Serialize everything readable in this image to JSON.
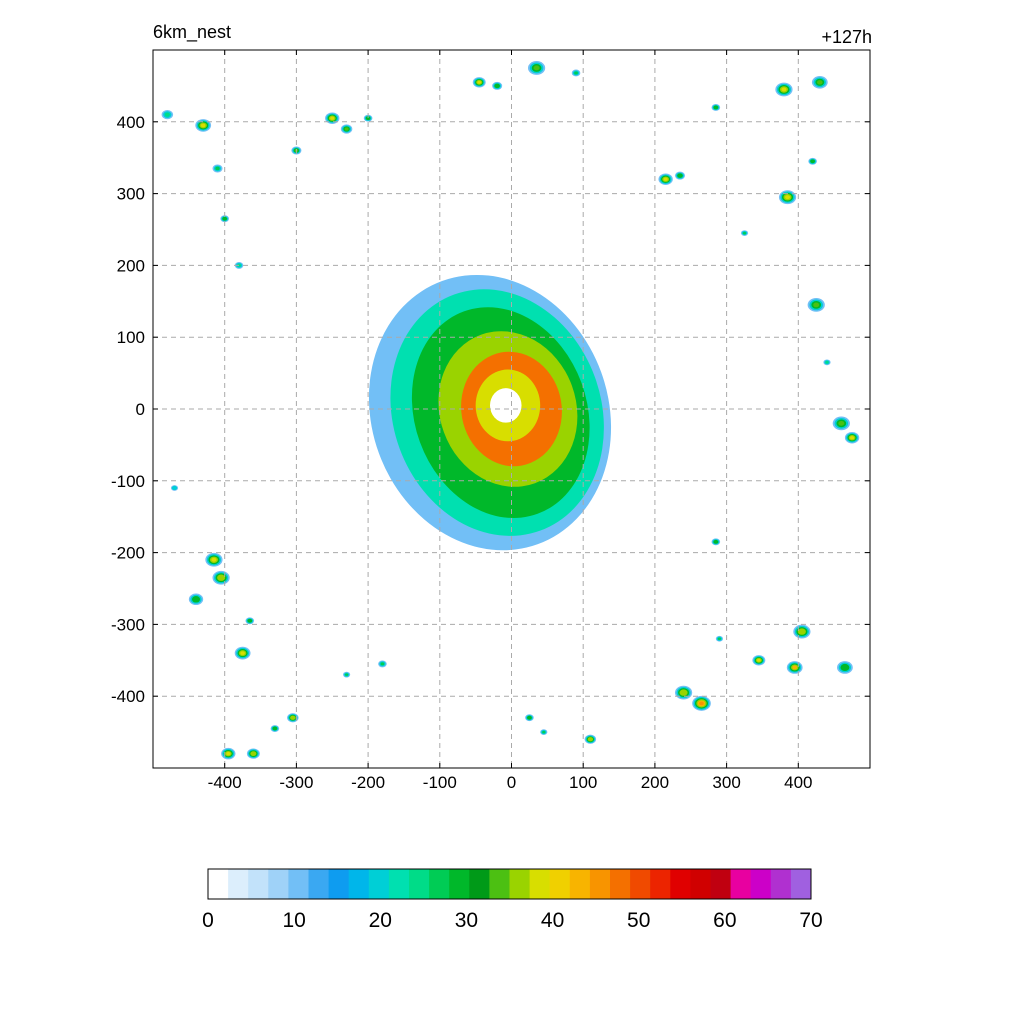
{
  "chart_data": {
    "type": "heatmap",
    "title_left": "6km_nest",
    "title_right": "+127h",
    "xlabel": "",
    "ylabel": "",
    "xlim": [
      -500,
      500
    ],
    "ylim": [
      -500,
      500
    ],
    "x_ticks": [
      -400,
      -300,
      -200,
      -100,
      0,
      100,
      200,
      300,
      400
    ],
    "y_ticks": [
      -400,
      -300,
      -200,
      -100,
      0,
      100,
      200,
      300,
      400
    ],
    "x_tick_labels": [
      "-400",
      "-300",
      "-200",
      "-100",
      "0",
      "100",
      "200",
      "300",
      "400"
    ],
    "y_tick_labels": [
      "-400",
      "-300",
      "-200",
      "-100",
      "0",
      "100",
      "200",
      "300",
      "400"
    ],
    "grid": true,
    "colorbar": {
      "min": 0,
      "max": 70,
      "step": 2.5,
      "tick_values": [
        0,
        10,
        20,
        30,
        40,
        50,
        60,
        70
      ],
      "tick_labels": [
        "0",
        "10",
        "20",
        "30",
        "40",
        "50",
        "60",
        "70"
      ],
      "colors": [
        "#ffffff",
        "#dceefc",
        "#c2e2fa",
        "#9fd2f8",
        "#72bff6",
        "#3aa8f2",
        "#0e9cf0",
        "#00b6ea",
        "#00cfd6",
        "#00e0b0",
        "#00dc88",
        "#00cc55",
        "#00b82a",
        "#009a18",
        "#4cc012",
        "#9ad300",
        "#d8de00",
        "#f0d000",
        "#f8b400",
        "#f89400",
        "#f47000",
        "#f04a00",
        "#ec2400",
        "#e00000",
        "#d00000",
        "#c00010",
        "#e800a0",
        "#cc00c8",
        "#b030d0",
        "#a060e0"
      ]
    },
    "storm": {
      "center": [
        -10,
        0
      ],
      "eye_radius": 22,
      "features": [
        {
          "type": "outer_band",
          "cx": -30,
          "cy": -5,
          "rx": 165,
          "ry": 195,
          "rotation_deg": -20,
          "value": 12
        },
        {
          "type": "rain_shield",
          "cx": -20,
          "cy": -5,
          "rx": 145,
          "ry": 175,
          "rotation_deg": -20,
          "value": 24
        },
        {
          "type": "rain_shield",
          "cx": -15,
          "cy": -5,
          "rx": 120,
          "ry": 150,
          "rotation_deg": -20,
          "value": 32
        },
        {
          "type": "eyewall_band",
          "cx": -5,
          "cy": 0,
          "rx": 95,
          "ry": 110,
          "rotation_deg": -20,
          "value": 38
        },
        {
          "type": "eyewall_band",
          "cx": 0,
          "cy": 0,
          "rx": 70,
          "ry": 80,
          "rotation_deg": -10,
          "value": 50
        },
        {
          "type": "eyewall_band",
          "cx": -5,
          "cy": 5,
          "rx": 45,
          "ry": 50,
          "rotation_deg": 0,
          "value": 40
        },
        {
          "type": "eye",
          "cx": -8,
          "cy": 5,
          "rx": 22,
          "ry": 24,
          "rotation_deg": 0,
          "value": 0
        }
      ]
    },
    "cells": [
      {
        "x": -480,
        "y": 410,
        "r": 8,
        "peak": 25
      },
      {
        "x": -430,
        "y": 395,
        "r": 11,
        "peak": 40
      },
      {
        "x": -410,
        "y": 335,
        "r": 7,
        "peak": 28
      },
      {
        "x": -400,
        "y": 265,
        "r": 6,
        "peak": 30
      },
      {
        "x": -380,
        "y": 200,
        "r": 6,
        "peak": 25
      },
      {
        "x": -300,
        "y": 360,
        "r": 7,
        "peak": 35
      },
      {
        "x": -250,
        "y": 405,
        "r": 10,
        "peak": 40
      },
      {
        "x": -230,
        "y": 390,
        "r": 8,
        "peak": 35
      },
      {
        "x": -200,
        "y": 405,
        "r": 6,
        "peak": 30
      },
      {
        "x": -45,
        "y": 455,
        "r": 9,
        "peak": 40
      },
      {
        "x": -20,
        "y": 450,
        "r": 7,
        "peak": 32
      },
      {
        "x": 35,
        "y": 475,
        "r": 12,
        "peak": 35
      },
      {
        "x": 90,
        "y": 468,
        "r": 6,
        "peak": 28
      },
      {
        "x": 215,
        "y": 320,
        "r": 10,
        "peak": 40
      },
      {
        "x": 235,
        "y": 325,
        "r": 7,
        "peak": 32
      },
      {
        "x": 285,
        "y": 420,
        "r": 6,
        "peak": 30
      },
      {
        "x": 325,
        "y": 245,
        "r": 5,
        "peak": 28
      },
      {
        "x": 380,
        "y": 445,
        "r": 12,
        "peak": 42
      },
      {
        "x": 430,
        "y": 455,
        "r": 11,
        "peak": 35
      },
      {
        "x": 385,
        "y": 295,
        "r": 12,
        "peak": 42
      },
      {
        "x": 420,
        "y": 345,
        "r": 6,
        "peak": 30
      },
      {
        "x": 425,
        "y": 145,
        "r": 12,
        "peak": 35
      },
      {
        "x": 440,
        "y": 65,
        "r": 5,
        "peak": 25
      },
      {
        "x": 460,
        "y": -20,
        "r": 12,
        "peak": 35
      },
      {
        "x": 475,
        "y": -40,
        "r": 10,
        "peak": 40
      },
      {
        "x": -470,
        "y": -110,
        "r": 5,
        "peak": 22
      },
      {
        "x": -415,
        "y": -210,
        "r": 12,
        "peak": 42
      },
      {
        "x": -405,
        "y": -235,
        "r": 12,
        "peak": 38
      },
      {
        "x": -440,
        "y": -265,
        "r": 10,
        "peak": 30
      },
      {
        "x": -365,
        "y": -295,
        "r": 6,
        "peak": 32
      },
      {
        "x": -375,
        "y": -340,
        "r": 11,
        "peak": 42
      },
      {
        "x": -180,
        "y": -355,
        "r": 6,
        "peak": 28
      },
      {
        "x": -230,
        "y": -370,
        "r": 5,
        "peak": 28
      },
      {
        "x": -305,
        "y": -430,
        "r": 8,
        "peak": 38
      },
      {
        "x": -330,
        "y": -445,
        "r": 6,
        "peak": 30
      },
      {
        "x": -395,
        "y": -480,
        "r": 10,
        "peak": 40
      },
      {
        "x": -360,
        "y": -480,
        "r": 9,
        "peak": 38
      },
      {
        "x": 25,
        "y": -430,
        "r": 6,
        "peak": 32
      },
      {
        "x": 45,
        "y": -450,
        "r": 5,
        "peak": 28
      },
      {
        "x": 110,
        "y": -460,
        "r": 8,
        "peak": 38
      },
      {
        "x": 240,
        "y": -395,
        "r": 12,
        "peak": 38
      },
      {
        "x": 265,
        "y": -410,
        "r": 13,
        "peak": 48
      },
      {
        "x": 285,
        "y": -185,
        "r": 6,
        "peak": 32
      },
      {
        "x": 290,
        "y": -320,
        "r": 5,
        "peak": 28
      },
      {
        "x": 345,
        "y": -350,
        "r": 9,
        "peak": 42
      },
      {
        "x": 395,
        "y": -360,
        "r": 11,
        "peak": 45
      },
      {
        "x": 405,
        "y": -310,
        "r": 12,
        "peak": 38
      },
      {
        "x": 465,
        "y": -360,
        "r": 11,
        "peak": 32
      }
    ]
  }
}
